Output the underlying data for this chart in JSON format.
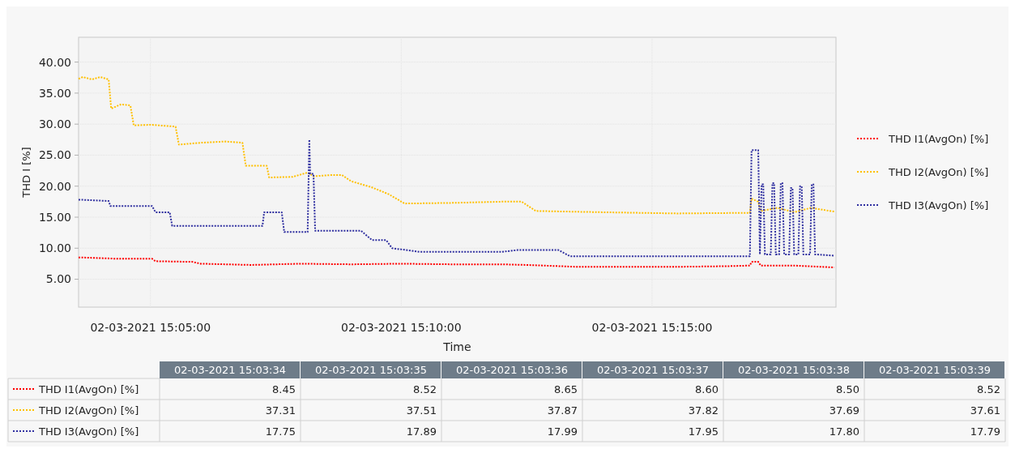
{
  "chart_data": [
    {
      "type": "line",
      "xlabel": "Time",
      "ylabel": "THD I [%]",
      "xlim": [
        "2021-03-02T15:03:34",
        "2021-03-02T15:18:40"
      ],
      "xticks": [
        {
          "value": "2021-03-02T15:05:00",
          "label": "02-03-2021 15:05:00"
        },
        {
          "value": "2021-03-02T15:10:00",
          "label": "02-03-2021 15:10:00"
        },
        {
          "value": "2021-03-02T15:15:00",
          "label": "02-03-2021 15:15:00"
        }
      ],
      "ylim": [
        0.5,
        44
      ],
      "yticks": [
        {
          "value": 5,
          "label": "5.00"
        },
        {
          "value": 10,
          "label": "10.00"
        },
        {
          "value": 15,
          "label": "15.00"
        },
        {
          "value": 20,
          "label": "20.00"
        },
        {
          "value": 25,
          "label": "25.00"
        },
        {
          "value": 30,
          "label": "30.00"
        },
        {
          "value": 35,
          "label": "35.00"
        },
        {
          "value": 40,
          "label": "40.00"
        }
      ],
      "grid": true,
      "legend": "right",
      "line_style": "dotted",
      "series": [
        {
          "name": "THD I1(AvgOn) [%]",
          "color": "#ff0000",
          "x": [
            "2021-03-02T15:03:34",
            "2021-03-02T15:03:39",
            "2021-03-02T15:04:20",
            "2021-03-02T15:05:02",
            "2021-03-02T15:05:06",
            "2021-03-02T15:05:50",
            "2021-03-02T15:06:00",
            "2021-03-02T15:07:00",
            "2021-03-02T15:08:00",
            "2021-03-02T15:09:00",
            "2021-03-02T15:10:00",
            "2021-03-02T15:11:00",
            "2021-03-02T15:12:00",
            "2021-03-02T15:12:30",
            "2021-03-02T15:13:30",
            "2021-03-02T15:14:30",
            "2021-03-02T15:15:30",
            "2021-03-02T15:16:30",
            "2021-03-02T15:16:57",
            "2021-03-02T15:16:59",
            "2021-03-02T15:17:07",
            "2021-03-02T15:17:10",
            "2021-03-02T15:17:50",
            "2021-03-02T15:18:38"
          ],
          "values": [
            8.5,
            8.5,
            8.3,
            8.3,
            7.9,
            7.8,
            7.5,
            7.3,
            7.5,
            7.4,
            7.5,
            7.4,
            7.4,
            7.3,
            7.0,
            7.0,
            7.0,
            7.1,
            7.2,
            7.8,
            7.8,
            7.2,
            7.2,
            6.9
          ]
        },
        {
          "name": "THD I2(AvgOn) [%]",
          "color": "#ffc000",
          "x": [
            "2021-03-02T15:03:34",
            "2021-03-02T15:03:39",
            "2021-03-02T15:03:50",
            "2021-03-02T15:04:00",
            "2021-03-02T15:04:10",
            "2021-03-02T15:04:13",
            "2021-03-02T15:04:25",
            "2021-03-02T15:04:36",
            "2021-03-02T15:04:40",
            "2021-03-02T15:05:00",
            "2021-03-02T15:05:30",
            "2021-03-02T15:05:34",
            "2021-03-02T15:06:00",
            "2021-03-02T15:06:30",
            "2021-03-02T15:06:50",
            "2021-03-02T15:06:54",
            "2021-03-02T15:07:19",
            "2021-03-02T15:07:22",
            "2021-03-02T15:07:50",
            "2021-03-02T15:08:08",
            "2021-03-02T15:08:15",
            "2021-03-02T15:08:37",
            "2021-03-02T15:08:49",
            "2021-03-02T15:09:00",
            "2021-03-02T15:09:25",
            "2021-03-02T15:09:45",
            "2021-03-02T15:10:04",
            "2021-03-02T15:11:00",
            "2021-03-02T15:12:00",
            "2021-03-02T15:12:24",
            "2021-03-02T15:12:41",
            "2021-03-02T15:14:00",
            "2021-03-02T15:15:30",
            "2021-03-02T15:16:57",
            "2021-03-02T15:16:59",
            "2021-03-02T15:17:07",
            "2021-03-02T15:17:10",
            "2021-03-02T15:17:30",
            "2021-03-02T15:17:50",
            "2021-03-02T15:18:10",
            "2021-03-02T15:18:38"
          ],
          "values": [
            37.3,
            37.6,
            37.2,
            37.6,
            37.2,
            32.5,
            33.2,
            33.0,
            29.8,
            29.9,
            29.6,
            26.7,
            27.0,
            27.2,
            27.0,
            23.3,
            23.3,
            21.4,
            21.5,
            22.2,
            21.6,
            21.8,
            21.8,
            20.8,
            19.8,
            18.7,
            17.2,
            17.3,
            17.5,
            17.5,
            16.0,
            15.8,
            15.6,
            15.7,
            18.0,
            17.5,
            16.0,
            16.5,
            15.8,
            16.5,
            15.9
          ]
        },
        {
          "name": "THD I3(AvgOn) [%]",
          "color": "#3030a0",
          "x": [
            "2021-03-02T15:03:34",
            "2021-03-02T15:03:39",
            "2021-03-02T15:04:10",
            "2021-03-02T15:04:12",
            "2021-03-02T15:05:02",
            "2021-03-02T15:05:06",
            "2021-03-02T15:05:23",
            "2021-03-02T15:05:26",
            "2021-03-02T15:07:14",
            "2021-03-02T15:07:16",
            "2021-03-02T15:07:37",
            "2021-03-02T15:07:40",
            "2021-03-02T15:08:08",
            "2021-03-02T15:08:10",
            "2021-03-02T15:08:11",
            "2021-03-02T15:08:15",
            "2021-03-02T15:08:17",
            "2021-03-02T15:09:12",
            "2021-03-02T15:09:25",
            "2021-03-02T15:09:42",
            "2021-03-02T15:09:49",
            "2021-03-02T15:10:23",
            "2021-03-02T15:12:00",
            "2021-03-02T15:12:19",
            "2021-03-02T15:13:08",
            "2021-03-02T15:13:22",
            "2021-03-02T15:16:57",
            "2021-03-02T15:16:59",
            "2021-03-02T15:17:07",
            "2021-03-02T15:17:09",
            "2021-03-02T15:17:11",
            "2021-03-02T15:17:13",
            "2021-03-02T15:17:15",
            "2021-03-02T15:17:22",
            "2021-03-02T15:17:24",
            "2021-03-02T15:17:26",
            "2021-03-02T15:17:28",
            "2021-03-02T15:17:32",
            "2021-03-02T15:17:34",
            "2021-03-02T15:17:36",
            "2021-03-02T15:17:38",
            "2021-03-02T15:17:44",
            "2021-03-02T15:17:46",
            "2021-03-02T15:17:48",
            "2021-03-02T15:17:50",
            "2021-03-02T15:17:55",
            "2021-03-02T15:17:57",
            "2021-03-02T15:17:59",
            "2021-03-02T15:18:01",
            "2021-03-02T15:18:09",
            "2021-03-02T15:18:11",
            "2021-03-02T15:18:13",
            "2021-03-02T15:18:15",
            "2021-03-02T15:18:38"
          ],
          "values": [
            17.8,
            17.8,
            17.6,
            16.8,
            16.8,
            15.8,
            15.8,
            13.6,
            13.6,
            15.8,
            15.8,
            12.6,
            12.6,
            27.5,
            22.0,
            22.0,
            12.8,
            12.8,
            11.3,
            11.3,
            10.0,
            9.4,
            9.4,
            9.7,
            9.7,
            8.7,
            8.7,
            25.8,
            25.8,
            9.0,
            20.3,
            20.3,
            9.0,
            9.0,
            20.5,
            20.5,
            9.0,
            9.0,
            20.5,
            20.5,
            9.0,
            9.0,
            19.7,
            19.7,
            9.0,
            9.0,
            20.0,
            20.0,
            9.0,
            9.0,
            20.3,
            20.3,
            9.0,
            8.8
          ]
        }
      ]
    },
    {
      "type": "other",
      "categories": [
        "02-03-2021 15:03:34",
        "02-03-2021 15:03:35",
        "02-03-2021 15:03:36",
        "02-03-2021 15:03:37",
        "02-03-2021 15:03:38",
        "02-03-2021 15:03:39"
      ],
      "series": [
        {
          "name": "THD I1(AvgOn) [%]",
          "color": "#ff0000",
          "values": [
            8.45,
            8.52,
            8.65,
            8.6,
            8.5,
            8.52
          ],
          "value_labels": [
            "8.45",
            "8.52",
            "8.65",
            "8.60",
            "8.50",
            "8.52"
          ]
        },
        {
          "name": "THD I2(AvgOn) [%]",
          "color": "#ffc000",
          "values": [
            37.31,
            37.51,
            37.87,
            37.82,
            37.69,
            37.61
          ],
          "value_labels": [
            "37.31",
            "37.51",
            "37.87",
            "37.82",
            "37.69",
            "37.61"
          ]
        },
        {
          "name": "THD I3(AvgOn) [%]",
          "color": "#3030a0",
          "values": [
            17.75,
            17.89,
            17.99,
            17.95,
            17.8,
            17.79
          ],
          "value_labels": [
            "17.75",
            "17.89",
            "17.99",
            "17.95",
            "17.80",
            "17.79"
          ]
        }
      ]
    }
  ]
}
